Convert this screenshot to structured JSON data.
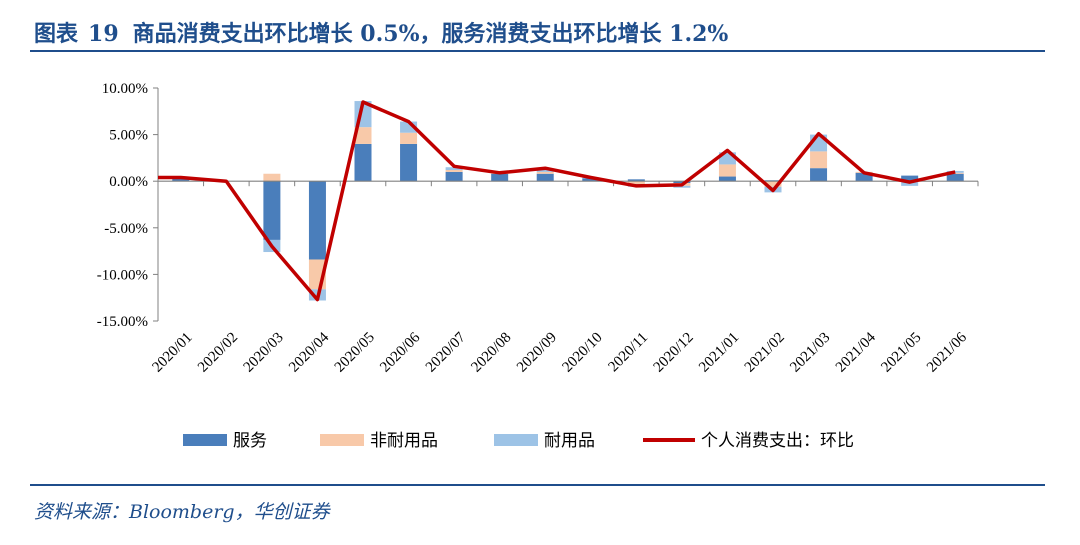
{
  "header": {
    "figure_label": "图表",
    "figure_number": "19",
    "title": "商品消费支出环比增长 0.5%，服务消费支出环比增长 1.2%"
  },
  "source": "资料来源：Bloomberg，华创证券",
  "colors": {
    "brand": "#1f4e8c",
    "services": "#4a7ebb",
    "nondurable": "#f8c9a9",
    "durable": "#9dc3e6",
    "total": "#c00000"
  },
  "chart_data": {
    "type": "bar",
    "stacked": true,
    "categories": [
      "2020/01",
      "2020/02",
      "2020/03",
      "2020/04",
      "2020/05",
      "2020/06",
      "2020/07",
      "2020/08",
      "2020/09",
      "2020/10",
      "2020/11",
      "2020/12",
      "2021/01",
      "2021/02",
      "2021/03",
      "2021/04",
      "2021/05",
      "2021/06"
    ],
    "y_ticks": [
      "10.00%",
      "5.00%",
      "0.00%",
      "-5.00%",
      "-10.00%",
      "-15.00%"
    ],
    "ylim": [
      -15,
      10
    ],
    "y_unit": "%",
    "legend_position": "bottom",
    "series": [
      {
        "name": "服务",
        "kind": "bar",
        "values": [
          0.3,
          0.0,
          -6.3,
          -8.4,
          4.0,
          4.0,
          1.0,
          0.8,
          0.8,
          0.3,
          0.2,
          -0.2,
          0.5,
          0.1,
          1.4,
          0.9,
          0.6,
          0.8
        ]
      },
      {
        "name": "非耐用品",
        "kind": "bar",
        "values": [
          0.1,
          0.0,
          0.8,
          -3.2,
          1.8,
          1.2,
          0.2,
          0.1,
          0.2,
          0.0,
          -0.3,
          -0.3,
          1.3,
          -0.6,
          1.8,
          0.1,
          -0.1,
          0.1
        ]
      },
      {
        "name": "耐用品",
        "kind": "bar",
        "values": [
          0.1,
          0.0,
          -1.3,
          -1.2,
          2.8,
          1.2,
          0.3,
          0.1,
          0.2,
          0.1,
          -0.3,
          -0.2,
          1.3,
          -0.6,
          1.8,
          0.0,
          -0.4,
          0.2
        ]
      },
      {
        "name": "个人消费支出：环比",
        "kind": "line",
        "values": [
          0.4,
          0.0,
          -7.0,
          -12.7,
          8.5,
          6.4,
          1.6,
          0.9,
          1.4,
          0.4,
          -0.5,
          -0.4,
          3.3,
          -1.0,
          5.1,
          0.9,
          -0.1,
          1.0
        ]
      }
    ]
  }
}
